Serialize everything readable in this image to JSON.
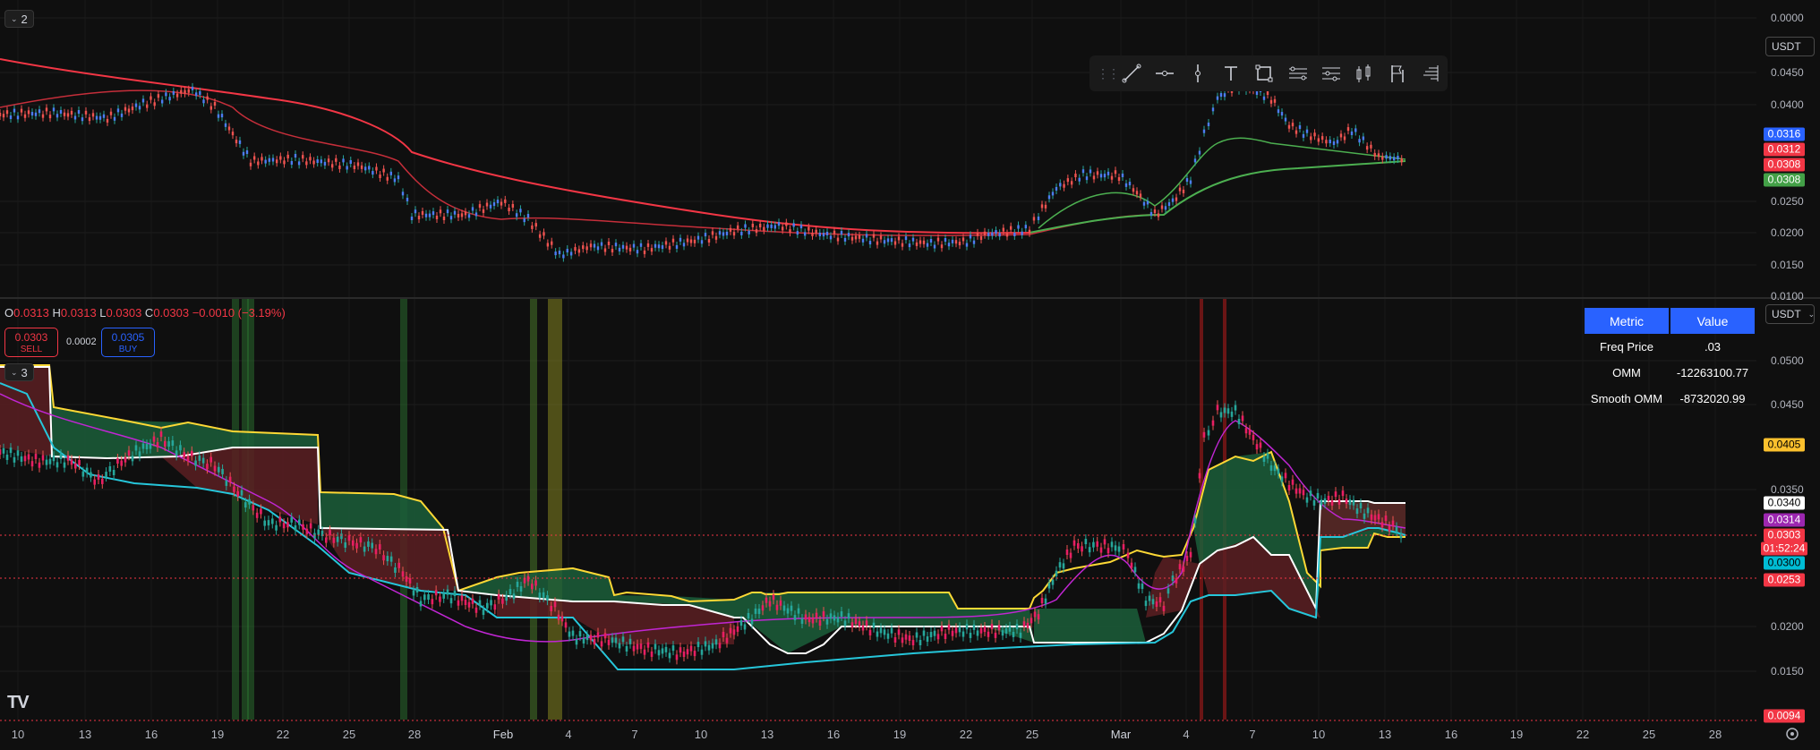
{
  "top_pane": {
    "toggle_label": "2",
    "currency": "USDT",
    "y_ticks": [
      "0.0000",
      "0.0450",
      "0.0400",
      "0.0250",
      "0.0200",
      "0.0150",
      "0.0100"
    ],
    "price_tags": [
      {
        "text": "0.0316",
        "color": "#2962ff"
      },
      {
        "text": "0.0312",
        "color": "#f23645"
      },
      {
        "text": "0.0308",
        "color": "#f23645"
      },
      {
        "text": "0.0308",
        "color": "#43a047"
      }
    ]
  },
  "bottom_pane": {
    "toggle_label": "3",
    "currency": "USDT",
    "ohlc": {
      "o_label": "O",
      "o": "0.0313",
      "h_label": "H",
      "h": "0.0313",
      "l_label": "L",
      "l": "0.0303",
      "c_label": "C",
      "c": "0.0303",
      "change": "−0.0010 (−3.19%)"
    },
    "sell": {
      "price": "0.0303",
      "label": "SELL"
    },
    "spread": "0.0002",
    "buy": {
      "price": "0.0305",
      "label": "BUY"
    },
    "y_ticks": [
      "0.0500",
      "0.0450",
      "0.0350",
      "0.0200",
      "0.0150"
    ],
    "price_tags": [
      {
        "text": "0.0405",
        "color": "#fbc02d",
        "fg": "#000000"
      },
      {
        "text": "0.0340",
        "color": "#ffffff",
        "fg": "#000000"
      },
      {
        "text": "0.0314",
        "color": "#9c27b0",
        "fg": "#ffffff"
      },
      {
        "text": "0.0303",
        "color": "#f23645",
        "fg": "#ffffff"
      },
      {
        "text": "01:52:24",
        "color": "#f23645",
        "fg": "#ffffff"
      },
      {
        "text": "0.0300",
        "color": "#00bcd4",
        "fg": "#000000"
      },
      {
        "text": "0.0253",
        "color": "#f23645",
        "fg": "#ffffff"
      },
      {
        "text": "0.0094",
        "color": "#f23645",
        "fg": "#ffffff"
      }
    ],
    "metrics_table": {
      "headers": [
        "Metric",
        "Value"
      ],
      "rows": [
        {
          "metric": "Freq Price",
          "value": ".03"
        },
        {
          "metric": "OMM",
          "value": "-12263100.77"
        },
        {
          "metric": "Smooth OMM",
          "value": "-8732020.99"
        }
      ]
    }
  },
  "x_axis": {
    "labels": [
      "10",
      "13",
      "16",
      "19",
      "22",
      "25",
      "28",
      "Feb",
      "4",
      "7",
      "10",
      "13",
      "16",
      "19",
      "22",
      "25",
      "Mar",
      "4",
      "7",
      "10",
      "13",
      "16",
      "19",
      "22",
      "25",
      "28"
    ]
  },
  "drawing_toolbar": {
    "tools": [
      "trend-line-icon",
      "horizontal-ray-icon",
      "vertical-line-icon",
      "text-icon",
      "rectangle-icon",
      "parallel-channel-icon",
      "fib-retracement-icon",
      "long-position-icon",
      "flag-icon",
      "volume-profile-icon"
    ]
  },
  "colors": {
    "background": "#0f0f0f",
    "red_ma": "#f23645",
    "green_ma": "#4caf50",
    "yellow_band": "#fdd835",
    "white_line": "#ffffff",
    "cyan_line": "#26c6da",
    "magenta_line": "#c026d3",
    "cloud_green": "#1b5e3a",
    "cloud_red": "#5a1f22"
  },
  "logo_text": "TV"
}
